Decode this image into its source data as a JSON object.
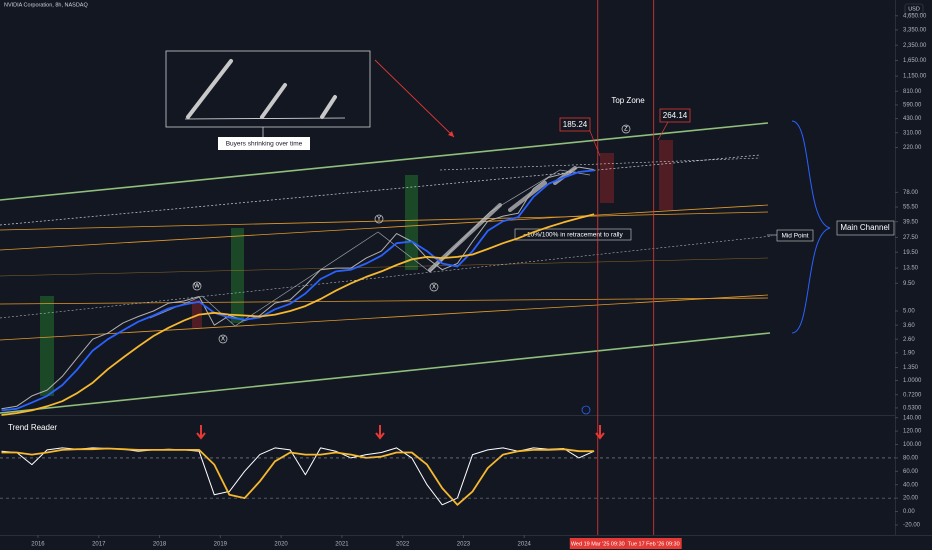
{
  "header": {
    "symbol": "NVIDIA Corporation, 8h, NASDAQ",
    "currency": "USD"
  },
  "annotations": {
    "buyers": "Buyers shrinking over time",
    "top_zone": "Top Zone",
    "level_a": "185.24",
    "level_b": "264.14",
    "retracement": "~10%/100% in retracement to rally",
    "mid_point": "Mid Point",
    "main_channel": "Main Channel",
    "indicator": "Trend Reader",
    "wave_w": "W",
    "wave_x1": "X",
    "wave_y": "Y",
    "wave_x2": "X",
    "wave_z": "Z"
  },
  "chart_data": [
    {
      "type": "line",
      "log_scale": true,
      "xlim": [
        2015.375,
        2030.1
      ],
      "xticks": [
        2016,
        2017,
        2018,
        2019,
        2020,
        2021,
        2022,
        2023,
        2024
      ],
      "ylim": [
        0.45,
        6700
      ],
      "yticks": [
        {
          "value": 4650,
          "label": "4,650.00"
        },
        {
          "value": 3350,
          "label": "3,350.00"
        },
        {
          "value": 2350,
          "label": "2,350.00"
        },
        {
          "value": 1650,
          "label": "1,650.00"
        },
        {
          "value": 1150,
          "label": "1,150.00"
        },
        {
          "value": 810,
          "label": "810.00"
        },
        {
          "value": 590,
          "label": "590.00"
        },
        {
          "value": 430,
          "label": "430.00"
        },
        {
          "value": 310,
          "label": "310.00"
        },
        {
          "value": 220,
          "label": "220.00"
        },
        {
          "value": 78,
          "label": "78.00"
        },
        {
          "value": 55.5,
          "label": "55.50"
        },
        {
          "value": 39.5,
          "label": "39.50"
        },
        {
          "value": 27.5,
          "label": "27.50"
        },
        {
          "value": 19.5,
          "label": "19.50"
        },
        {
          "value": 13.5,
          "label": "13.50"
        },
        {
          "value": 9.5,
          "label": "9.50"
        },
        {
          "value": 5,
          "label": "5.00"
        },
        {
          "value": 3.6,
          "label": "3.60"
        },
        {
          "value": 2.6,
          "label": "2.60"
        },
        {
          "value": 1.9,
          "label": "1.90"
        },
        {
          "value": 1.35,
          "label": "1.350"
        },
        {
          "value": 1,
          "label": "1.0000"
        },
        {
          "value": 0.72,
          "label": "0.7200"
        },
        {
          "value": 0.53,
          "label": "0.5300"
        }
      ],
      "markers": [
        {
          "x": 2025.21,
          "label": "Wed 19 Mar '25  09:30"
        },
        {
          "x": 2026.13,
          "label": "Tue 17 Feb '26  09:30"
        }
      ],
      "x": [
        2015.4,
        2015.65,
        2015.9,
        2016.15,
        2016.4,
        2016.65,
        2016.9,
        2017.15,
        2017.4,
        2017.65,
        2017.9,
        2018.15,
        2018.4,
        2018.65,
        2018.9,
        2019.15,
        2019.4,
        2019.65,
        2019.9,
        2020.15,
        2020.4,
        2020.65,
        2020.9,
        2021.15,
        2021.4,
        2021.65,
        2021.9,
        2022.15,
        2022.4,
        2022.65,
        2022.9,
        2023.15,
        2023.4,
        2023.65,
        2023.9,
        2024.15,
        2024.4,
        2024.65,
        2024.9,
        2025.15
      ],
      "series": [
        {
          "color": "#b0b0b0",
          "values": [
            0.52,
            0.55,
            0.7,
            0.8,
            1.1,
            1.7,
            2.6,
            3.0,
            3.8,
            4.4,
            5.0,
            6.0,
            6.3,
            7.0,
            3.6,
            4.5,
            4.0,
            4.5,
            6.0,
            6.5,
            9.0,
            13,
            13.5,
            13.5,
            17,
            20,
            30,
            25,
            17,
            13,
            15,
            25,
            40,
            45,
            48,
            85,
            110,
            120,
            140,
            132
          ]
        },
        {
          "color": "#2962ff",
          "values": [
            0.5,
            0.52,
            0.6,
            0.7,
            0.9,
            1.3,
            2.0,
            2.6,
            3.2,
            3.9,
            4.5,
            5.3,
            5.8,
            6.2,
            4.8,
            4.3,
            4.1,
            4.3,
            5.2,
            5.9,
            7.5,
            10.5,
            12.5,
            13,
            15,
            18,
            24,
            25,
            20,
            15,
            14,
            20,
            32,
            40,
            44,
            70,
            95,
            110,
            125,
            130
          ]
        },
        {
          "color": "#f5b82e",
          "values": [
            0.45,
            0.47,
            0.5,
            0.55,
            0.62,
            0.75,
            0.95,
            1.3,
            1.7,
            2.2,
            2.8,
            3.4,
            4.0,
            4.6,
            4.8,
            4.6,
            4.5,
            4.4,
            4.6,
            5.0,
            5.6,
            6.6,
            8,
            9.5,
            11,
            12.5,
            14.5,
            16.5,
            17.5,
            17,
            17.5,
            18.5,
            21,
            24,
            27,
            31,
            35,
            39,
            43,
            47
          ]
        }
      ]
    },
    {
      "type": "line",
      "ylim": [
        -35,
        147
      ],
      "yticks": [
        {
          "value": 140,
          "label": "140.00"
        },
        {
          "value": 120,
          "label": "120.00"
        },
        {
          "value": 100,
          "label": "100.00"
        },
        {
          "value": 80,
          "label": "80.00"
        },
        {
          "value": 60,
          "label": "60.00"
        },
        {
          "value": 40,
          "label": "40.00"
        },
        {
          "value": 20,
          "label": "20.00"
        },
        {
          "value": 0,
          "label": "0.00"
        },
        {
          "value": -20,
          "label": "-20.00"
        }
      ],
      "bands": [
        80,
        20
      ],
      "x": [
        2015.4,
        2015.65,
        2015.9,
        2016.15,
        2016.4,
        2016.65,
        2016.9,
        2017.15,
        2017.4,
        2017.65,
        2017.9,
        2018.15,
        2018.4,
        2018.65,
        2018.9,
        2019.15,
        2019.4,
        2019.65,
        2019.9,
        2020.15,
        2020.4,
        2020.65,
        2020.9,
        2021.15,
        2021.4,
        2021.65,
        2021.9,
        2022.15,
        2022.4,
        2022.65,
        2022.9,
        2023.15,
        2023.4,
        2023.65,
        2023.9,
        2024.15,
        2024.4,
        2024.65,
        2024.9,
        2025.15
      ],
      "series": [
        {
          "color": "#ffffff",
          "values": [
            90,
            88,
            70,
            92,
            95,
            93,
            95,
            94,
            93,
            90,
            92,
            93,
            92,
            90,
            25,
            30,
            60,
            85,
            95,
            92,
            55,
            95,
            90,
            80,
            85,
            88,
            95,
            80,
            40,
            10,
            20,
            85,
            92,
            95,
            90,
            95,
            93,
            94,
            80,
            90
          ]
        },
        {
          "color": "#f5b82e",
          "values": [
            88,
            88,
            85,
            88,
            92,
            93,
            93,
            94,
            93,
            92,
            92,
            92,
            92,
            92,
            70,
            25,
            20,
            45,
            75,
            88,
            85,
            85,
            88,
            85,
            80,
            82,
            88,
            88,
            70,
            35,
            10,
            30,
            65,
            85,
            90,
            92,
            92,
            93,
            90,
            90
          ]
        }
      ]
    }
  ]
}
